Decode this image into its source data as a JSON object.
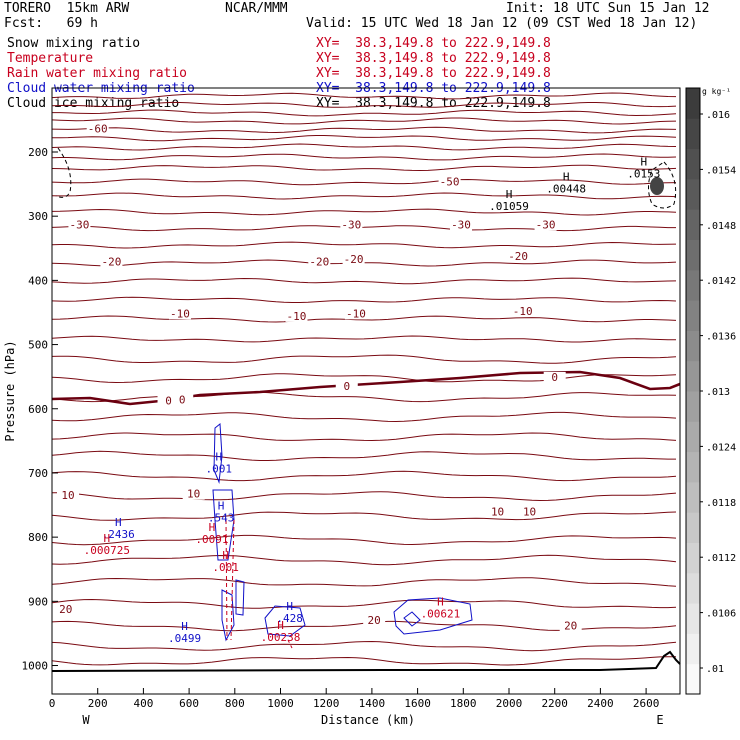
{
  "header": {
    "model": "TORERO  15km ARW",
    "center": "NCAR/MMM",
    "init": "Init: 18 UTC Sun 15 Jan 12",
    "fcst": "Fcst:   69 h",
    "valid": "Valid: 15 UTC Wed 18 Jan 12 (09 CST Wed 18 Jan 12)"
  },
  "fields": [
    {
      "name": "Snow mixing ratio",
      "xy": "XY=  38.3,149.8 to 222.9,149.8",
      "color": "#000000"
    },
    {
      "name": "Temperature",
      "xy": "XY=  38.3,149.8 to 222.9,149.8",
      "color": "#c8001e"
    },
    {
      "name": "Rain water mixing ratio",
      "xy": "XY=  38.3,149.8 to 222.9,149.8",
      "color": "#c8001e"
    },
    {
      "name": "Cloud water mixing ratio",
      "xy": "XY=  38.3,149.8 to 222.9,149.8",
      "color": "#1010c8"
    },
    {
      "name": "Cloud ice mixing ratio",
      "xy": "XY=  38.3,149.8 to 222.9,149.8",
      "color": "#000000"
    }
  ],
  "chart_data": {
    "type": "contour",
    "xlabel": "Distance (km)",
    "ylabel": "Pressure (hPa)",
    "xlim": [
      0,
      2750
    ],
    "x_ticks": [
      0,
      200,
      400,
      600,
      800,
      1000,
      1200,
      1400,
      1600,
      1800,
      2000,
      2200,
      2400,
      2600
    ],
    "y_ticks": [
      200,
      300,
      400,
      500,
      600,
      700,
      800,
      900,
      1000
    ],
    "x_end_labels": {
      "left": "W",
      "right": "E"
    },
    "colorbar": {
      "units": "g kg⁻¹",
      "ticks": [
        ".01",
        ".0106",
        ".0112",
        ".0118",
        ".0124",
        ".013",
        ".0136",
        ".0142",
        ".0148",
        ".0154",
        ".016"
      ]
    },
    "temperature_labels": [
      {
        "text": "-60",
        "x": 200,
        "p": 168
      },
      {
        "text": "-50",
        "x": 1740,
        "p": 251
      },
      {
        "text": "-30",
        "x": 120,
        "p": 318
      },
      {
        "text": "-30",
        "x": 1310,
        "p": 318
      },
      {
        "text": "-30",
        "x": 1790,
        "p": 318
      },
      {
        "text": "-30",
        "x": 2160,
        "p": 318
      },
      {
        "text": "-20",
        "x": 260,
        "p": 375
      },
      {
        "text": "-20",
        "x": 1170,
        "p": 375
      },
      {
        "text": "-20",
        "x": 1320,
        "p": 371
      },
      {
        "text": "-20",
        "x": 2040,
        "p": 367
      },
      {
        "text": "-10",
        "x": 560,
        "p": 456
      },
      {
        "text": "-10",
        "x": 1070,
        "p": 460
      },
      {
        "text": "-10",
        "x": 1330,
        "p": 456
      },
      {
        "text": "-10",
        "x": 2060,
        "p": 452
      },
      {
        "text": "0",
        "x": 510,
        "p": 592
      },
      {
        "text": "0",
        "x": 570,
        "p": 590
      },
      {
        "text": "0",
        "x": 1290,
        "p": 569
      },
      {
        "text": "0",
        "x": 2200,
        "p": 555
      },
      {
        "text": "10",
        "x": 70,
        "p": 739
      },
      {
        "text": "10",
        "x": 620,
        "p": 737
      },
      {
        "text": "10",
        "x": 1950,
        "p": 765
      },
      {
        "text": "10",
        "x": 2090,
        "p": 765
      },
      {
        "text": "20",
        "x": 60,
        "p": 917
      },
      {
        "text": "20",
        "x": 1410,
        "p": 934
      },
      {
        "text": "20",
        "x": 2270,
        "p": 942
      }
    ],
    "extrema_labels": [
      {
        "marker": "H",
        "text": ".01059",
        "x": 2000,
        "p": 290,
        "color": "#000000"
      },
      {
        "marker": "H",
        "text": ".00448",
        "x": 2250,
        "p": 263,
        "color": "#000000"
      },
      {
        "marker": "H",
        "text": ".0153",
        "x": 2590,
        "p": 240,
        "color": "#000000"
      },
      {
        "marker": "H",
        "text": ".001",
        "x": 730,
        "p": 699,
        "color": "#1010c8"
      },
      {
        "marker": "H",
        "text": ".543",
        "x": 740,
        "p": 776,
        "color": "#1010c8"
      },
      {
        "marker": "H",
        "text": ".0091",
        "x": 700,
        "p": 809,
        "color": "#c8001e"
      },
      {
        "marker": "H",
        "text": ".001",
        "x": 760,
        "p": 853,
        "color": "#c8001e"
      },
      {
        "marker": "H",
        "text": ".2436",
        "x": 290,
        "p": 801,
        "color": "#1010c8"
      },
      {
        "marker": "H",
        "text": ".000725",
        "x": 240,
        "p": 826,
        "color": "#c8001e"
      },
      {
        "marker": "H",
        "text": ".0499",
        "x": 580,
        "p": 963,
        "color": "#1010c8"
      },
      {
        "marker": "H",
        "text": ".428",
        "x": 1040,
        "p": 932,
        "color": "#1010c8"
      },
      {
        "marker": "H",
        "text": ".00238",
        "x": 1000,
        "p": 962,
        "color": "#c8001e"
      },
      {
        "marker": "H",
        "text": ".00621",
        "x": 1700,
        "p": 925,
        "color": "#c8001e"
      }
    ]
  }
}
